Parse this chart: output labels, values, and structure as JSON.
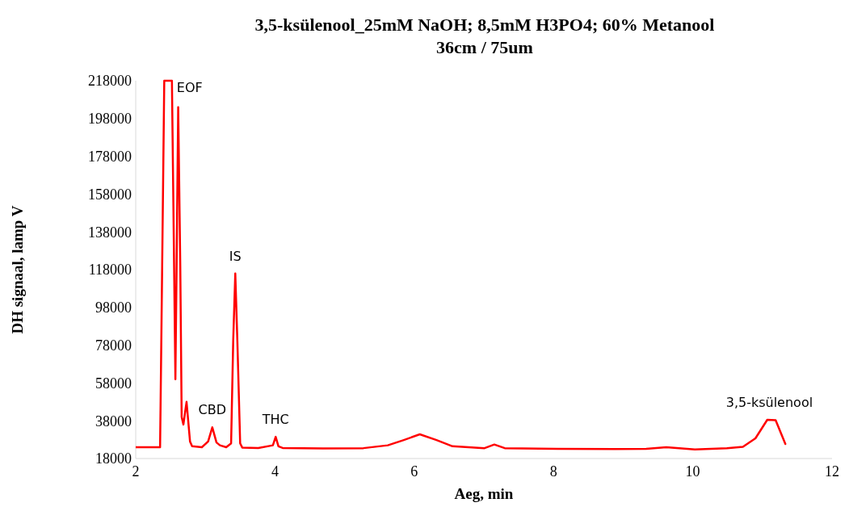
{
  "chart_data": {
    "type": "line",
    "title": "3,5-ksülenool_25mM NaOH; 8,5mM H3PO4; 60% Metanool",
    "subtitle": "36cm / 75um",
    "xlabel": "Aeg, min",
    "ylabel": "DH signaal, lamp V",
    "xlim": [
      2,
      12
    ],
    "xticks": [
      2,
      4,
      6,
      8,
      10,
      12
    ],
    "ylim": [
      18000,
      218000
    ],
    "yticks": [
      18000,
      38000,
      58000,
      78000,
      98000,
      118000,
      138000,
      158000,
      178000,
      198000,
      218000
    ],
    "grid": false,
    "annotations": [
      {
        "text": "EOF",
        "x": 2.52,
        "y": 218000
      },
      {
        "text": "CBD",
        "x": 3.1,
        "y": 34500
      },
      {
        "text": "IS",
        "x": 3.43,
        "y": 116000
      },
      {
        "text": "THC",
        "x": 4.01,
        "y": 29500
      },
      {
        "text": "3,5-ksülenool",
        "x": 11.1,
        "y": 38500
      }
    ],
    "series": [
      {
        "color": "#ff0000",
        "x": [
          2,
          2.35,
          2.38,
          2.41,
          2.52,
          2.545,
          2.57,
          2.59,
          2.61,
          2.64,
          2.66,
          2.685,
          2.73,
          2.78,
          2.81,
          2.95,
          3.04,
          3.1,
          3.16,
          3.21,
          3.3,
          3.37,
          3.4,
          3.43,
          3.46,
          3.5,
          3.53,
          3.76,
          3.97,
          4.01,
          4.05,
          4.11,
          4.69,
          5.27,
          5.62,
          5.85,
          6.08,
          6.32,
          6.55,
          7.01,
          7.15,
          7.3,
          8.06,
          8.87,
          9.33,
          9.62,
          10.03,
          10.49,
          10.72,
          10.9,
          11.07,
          11.19,
          11.33
        ],
        "values": [
          24000,
          24000,
          120000,
          218000,
          218000,
          140000,
          60000,
          130000,
          204000,
          120000,
          40000,
          36000,
          48000,
          27000,
          24500,
          24000,
          27000,
          34500,
          26500,
          25000,
          24000,
          26000,
          80000,
          116000,
          80000,
          26000,
          23800,
          23600,
          25000,
          29500,
          24500,
          23600,
          23300,
          23500,
          25000,
          27800,
          30800,
          27800,
          24500,
          23500,
          25400,
          23500,
          23100,
          23000,
          23100,
          24000,
          22800,
          23500,
          24200,
          28700,
          38500,
          38300,
          25700
        ]
      }
    ]
  }
}
